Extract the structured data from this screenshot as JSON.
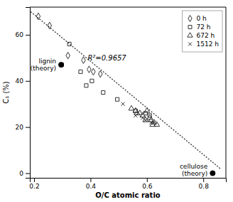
{
  "chart_data": {
    "type": "scatter",
    "title": "",
    "xlabel": "O/C atomic ratio",
    "ylabel": "C₁ (%)",
    "xlim": [
      0.185,
      0.88
    ],
    "ylim": [
      -2,
      72
    ],
    "xticks": [
      0.2,
      0.4,
      0.6,
      0.8
    ],
    "yticks": [
      0,
      20,
      40,
      60
    ],
    "grid": false,
    "legend": "upper right",
    "series": [
      {
        "type": "line",
        "line_style": "dotted",
        "color": "#333333",
        "x": [
          0.188,
          0.86
        ],
        "values": [
          70.0,
          2.0
        ]
      },
      {
        "name": "0 h",
        "marker": "open-diamond",
        "color": "#333333",
        "x": [
          0.215,
          0.255,
          0.32,
          0.375,
          0.395,
          0.41,
          0.435
        ],
        "values": [
          68,
          64,
          51,
          49,
          45,
          44,
          43
        ]
      },
      {
        "name": "72 h",
        "marker": "open-square",
        "color": "#333333",
        "x": [
          0.298,
          0.325,
          0.365,
          0.385,
          0.405,
          0.445,
          0.495,
          0.56,
          0.595,
          0.61
        ],
        "values": [
          47,
          56,
          44,
          38,
          40,
          35,
          32,
          27,
          26,
          25
        ]
      },
      {
        "name": "672 h",
        "marker": "open-triangle",
        "color": "#333333",
        "x": [
          0.545,
          0.56,
          0.565,
          0.575,
          0.585,
          0.595,
          0.6,
          0.61,
          0.615,
          0.62,
          0.625,
          0.635
        ],
        "values": [
          28,
          27,
          26,
          26,
          25,
          23,
          27,
          24,
          23,
          21,
          22,
          21
        ]
      },
      {
        "name": "1512 h",
        "marker": "x",
        "color": "#333333",
        "x": [
          0.515,
          0.56,
          0.585,
          0.595,
          0.615,
          0.625
        ],
        "values": [
          30,
          25,
          24,
          23,
          22,
          22
        ]
      },
      {
        "type": "scatter",
        "marker": "circle",
        "color": "#000000",
        "x": [
          0.296,
          0.833
        ],
        "values": [
          47,
          0.0
        ],
        "point_labels": [
          "lignin\n(theory)",
          "cellulose\n(theory)"
        ]
      }
    ],
    "annotations": [
      {
        "text": "R²=0.9657",
        "x": 0.39,
        "y": 49
      }
    ]
  }
}
